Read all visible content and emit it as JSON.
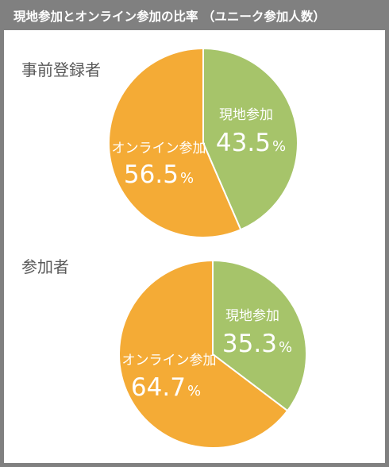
{
  "title": "現地参加とオンライン参加の比率 （ユニーク参加人数）",
  "colors": {
    "onsite": "#a6c46a",
    "online": "#f4ab36",
    "frame": "#808080"
  },
  "chart_data": [
    {
      "type": "pie",
      "title": "事前登録者",
      "slices": [
        {
          "label": "現地参加",
          "value": 43.5,
          "value_text": "43.5",
          "unit": "%"
        },
        {
          "label": "オンライン参加",
          "value": 56.5,
          "value_text": "56.5",
          "unit": "%"
        }
      ]
    },
    {
      "type": "pie",
      "title": "参加者",
      "slices": [
        {
          "label": "現地参加",
          "value": 35.3,
          "value_text": "35.3",
          "unit": "%"
        },
        {
          "label": "オンライン参加",
          "value": 64.7,
          "value_text": "64.7",
          "unit": "%"
        }
      ]
    }
  ]
}
